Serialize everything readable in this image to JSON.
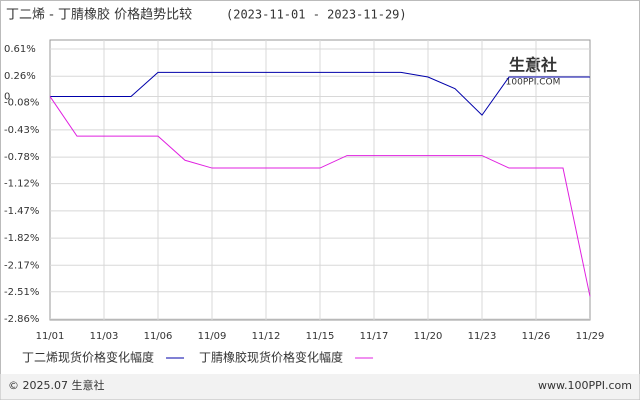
{
  "chart_data": {
    "type": "line",
    "title": "丁二烯 - 丁腈橡胶 价格趋势比较",
    "subtitle": "(2023-11-01 - 2023-11-29)",
    "categories": [
      "11/01",
      null,
      "11/03",
      null,
      "11/06",
      null,
      "11/09",
      null,
      "11/12",
      null,
      "11/15",
      null,
      "11/17",
      null,
      "11/20",
      null,
      "11/23",
      null,
      "11/26",
      null,
      "11/29"
    ],
    "series": [
      {
        "name": "丁二烯现货价格变化幅度",
        "color": "#0000aa",
        "values": [
          0,
          0,
          0,
          0,
          0.31,
          0.31,
          0.31,
          0.31,
          0.31,
          0.31,
          0.31,
          0.31,
          0.31,
          0.31,
          0.25,
          0.1,
          -0.24,
          0.25,
          0.25,
          0.25,
          0.25
        ]
      },
      {
        "name": "丁腈橡胶现货价格变化幅度",
        "color": "#e020e0",
        "values": [
          0,
          -0.51,
          -0.51,
          -0.51,
          -0.51,
          -0.82,
          -0.92,
          -0.92,
          -0.92,
          -0.92,
          -0.92,
          -0.76,
          -0.76,
          -0.76,
          -0.76,
          -0.76,
          -0.76,
          -0.92,
          -0.92,
          -0.92,
          -2.57
        ]
      }
    ],
    "ylim": [
      -2.86,
      0.61
    ],
    "yticks": [
      {
        "value": 0.61,
        "label": "0.61%"
      },
      {
        "value": 0.26,
        "label": "0.26%"
      },
      0,
      {
        "value": -0.08,
        "label": "-0.08%"
      },
      {
        "value": -0.43,
        "label": "-0.43%"
      },
      {
        "value": -0.78,
        "label": "-0.78%"
      },
      {
        "value": -1.12,
        "label": "-1.12%"
      },
      {
        "value": -1.47,
        "label": "-1.47%"
      },
      {
        "value": -1.82,
        "label": "-1.82%"
      },
      {
        "value": -2.17,
        "label": "-2.17%"
      },
      {
        "value": -2.51,
        "label": "-2.51%"
      },
      {
        "value": -2.86,
        "label": "-2.86%"
      }
    ],
    "grid": true,
    "watermark": "生意社",
    "watermark_sub": "100PPI.COM",
    "footer_left": "© 2025.07 生意社",
    "footer_right": "www.100PPI.com"
  }
}
